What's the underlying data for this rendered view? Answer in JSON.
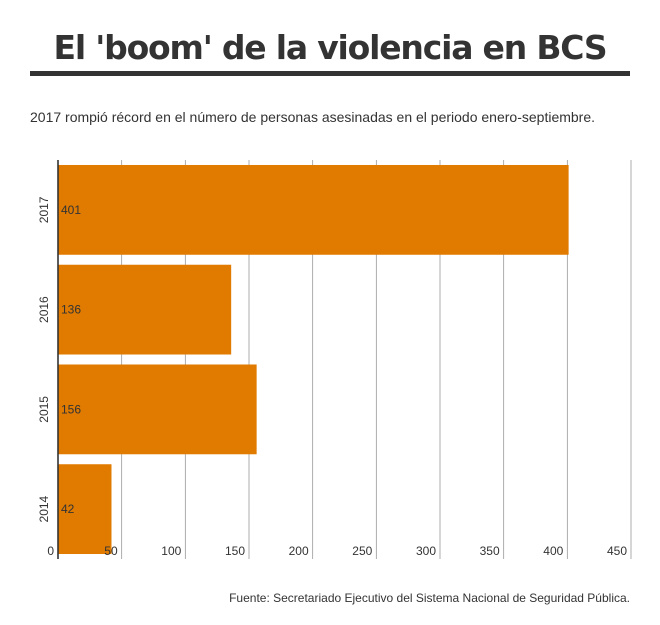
{
  "header": {
    "title": "El 'boom' de la violencia en BCS",
    "subtitle": "2017 rompió récord en el número de personas asesinadas en el periodo enero-septiembre."
  },
  "footer": {
    "source": "Fuente: Secretariado Ejecutivo del Sistema Nacional de Seguridad Pública."
  },
  "colors": {
    "bar": "#E07B00",
    "grid": "#999999",
    "axis": "#333333",
    "text": "#333333"
  },
  "chart_data": {
    "type": "bar",
    "orientation": "horizontal",
    "title": "El 'boom' de la violencia en BCS",
    "subtitle": "2017 rompió récord en el número de personas asesinadas en el periodo enero-septiembre.",
    "categories": [
      "2017",
      "2016",
      "2015",
      "2014"
    ],
    "values": [
      401,
      136,
      156,
      42
    ],
    "value_labels": [
      "401",
      "136",
      "156",
      "42"
    ],
    "xlim": [
      0,
      450
    ],
    "x_ticks": [
      0,
      50,
      100,
      150,
      200,
      250,
      300,
      350,
      400,
      450
    ],
    "x_tick_labels": [
      "0",
      "50",
      "100",
      "150",
      "200",
      "250",
      "300",
      "350",
      "400",
      "450"
    ],
    "xlabel": "",
    "ylabel": "",
    "grid": "vertical",
    "legend": "none"
  }
}
